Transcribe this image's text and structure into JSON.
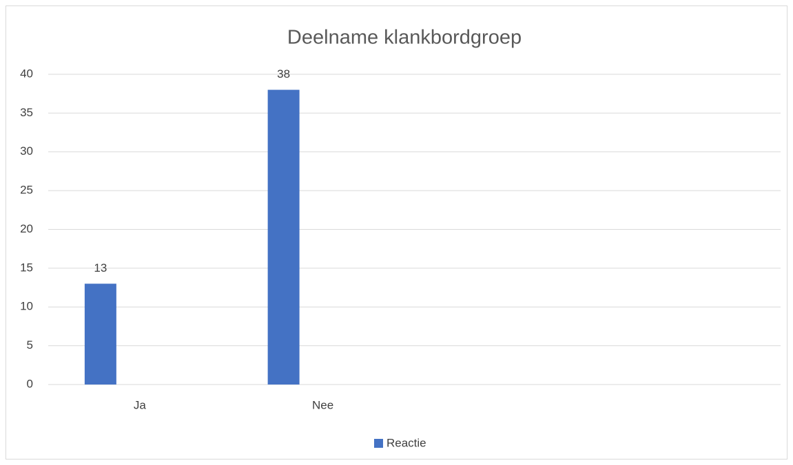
{
  "chart_data": {
    "type": "bar",
    "title": "Deelname klankbordgroep",
    "categories": [
      "Ja",
      "Nee",
      null,
      null
    ],
    "series": [
      {
        "name": "Reactie",
        "color": "#4472c4",
        "values": [
          13,
          38,
          null,
          null
        ]
      }
    ],
    "ylim": [
      0,
      40
    ],
    "yticks": [
      0,
      5,
      10,
      15,
      20,
      25,
      30,
      35,
      40
    ],
    "grid": true,
    "legend": "bottom"
  }
}
